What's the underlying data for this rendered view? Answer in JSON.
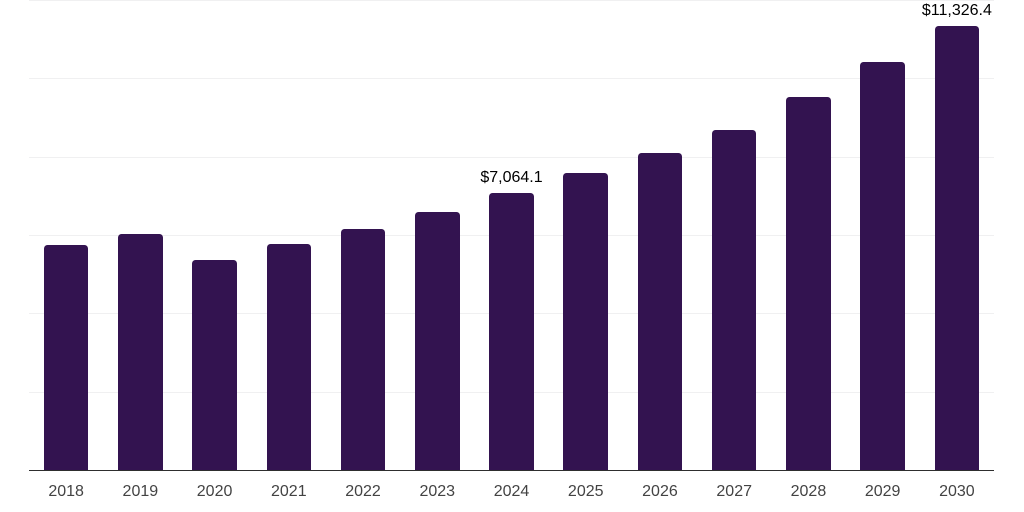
{
  "chart_data": {
    "type": "bar",
    "categories": [
      "2018",
      "2019",
      "2020",
      "2021",
      "2022",
      "2023",
      "2024",
      "2025",
      "2026",
      "2027",
      "2028",
      "2029",
      "2030"
    ],
    "values": [
      5745,
      6018,
      5374,
      5783,
      6153,
      6595,
      7064.1,
      7575,
      8106,
      8681,
      9516,
      10409,
      11326.4
    ],
    "data_labels": [
      "",
      "",
      "",
      "",
      "",
      "",
      "$7,064.1",
      "",
      "",
      "",
      "",
      "",
      "$11,326.4"
    ],
    "ylim": [
      0,
      12000
    ],
    "gridline_interval": 2000,
    "grid": "horizontal",
    "legend": "none",
    "bar_width_ratio": 0.6
  },
  "colors": {
    "bar": "#331350",
    "axis_line": "#2e2e2e",
    "gridline": "#f0f0f1",
    "tick_label": "#434343",
    "data_label": "#000000",
    "background": "#ffffff"
  }
}
